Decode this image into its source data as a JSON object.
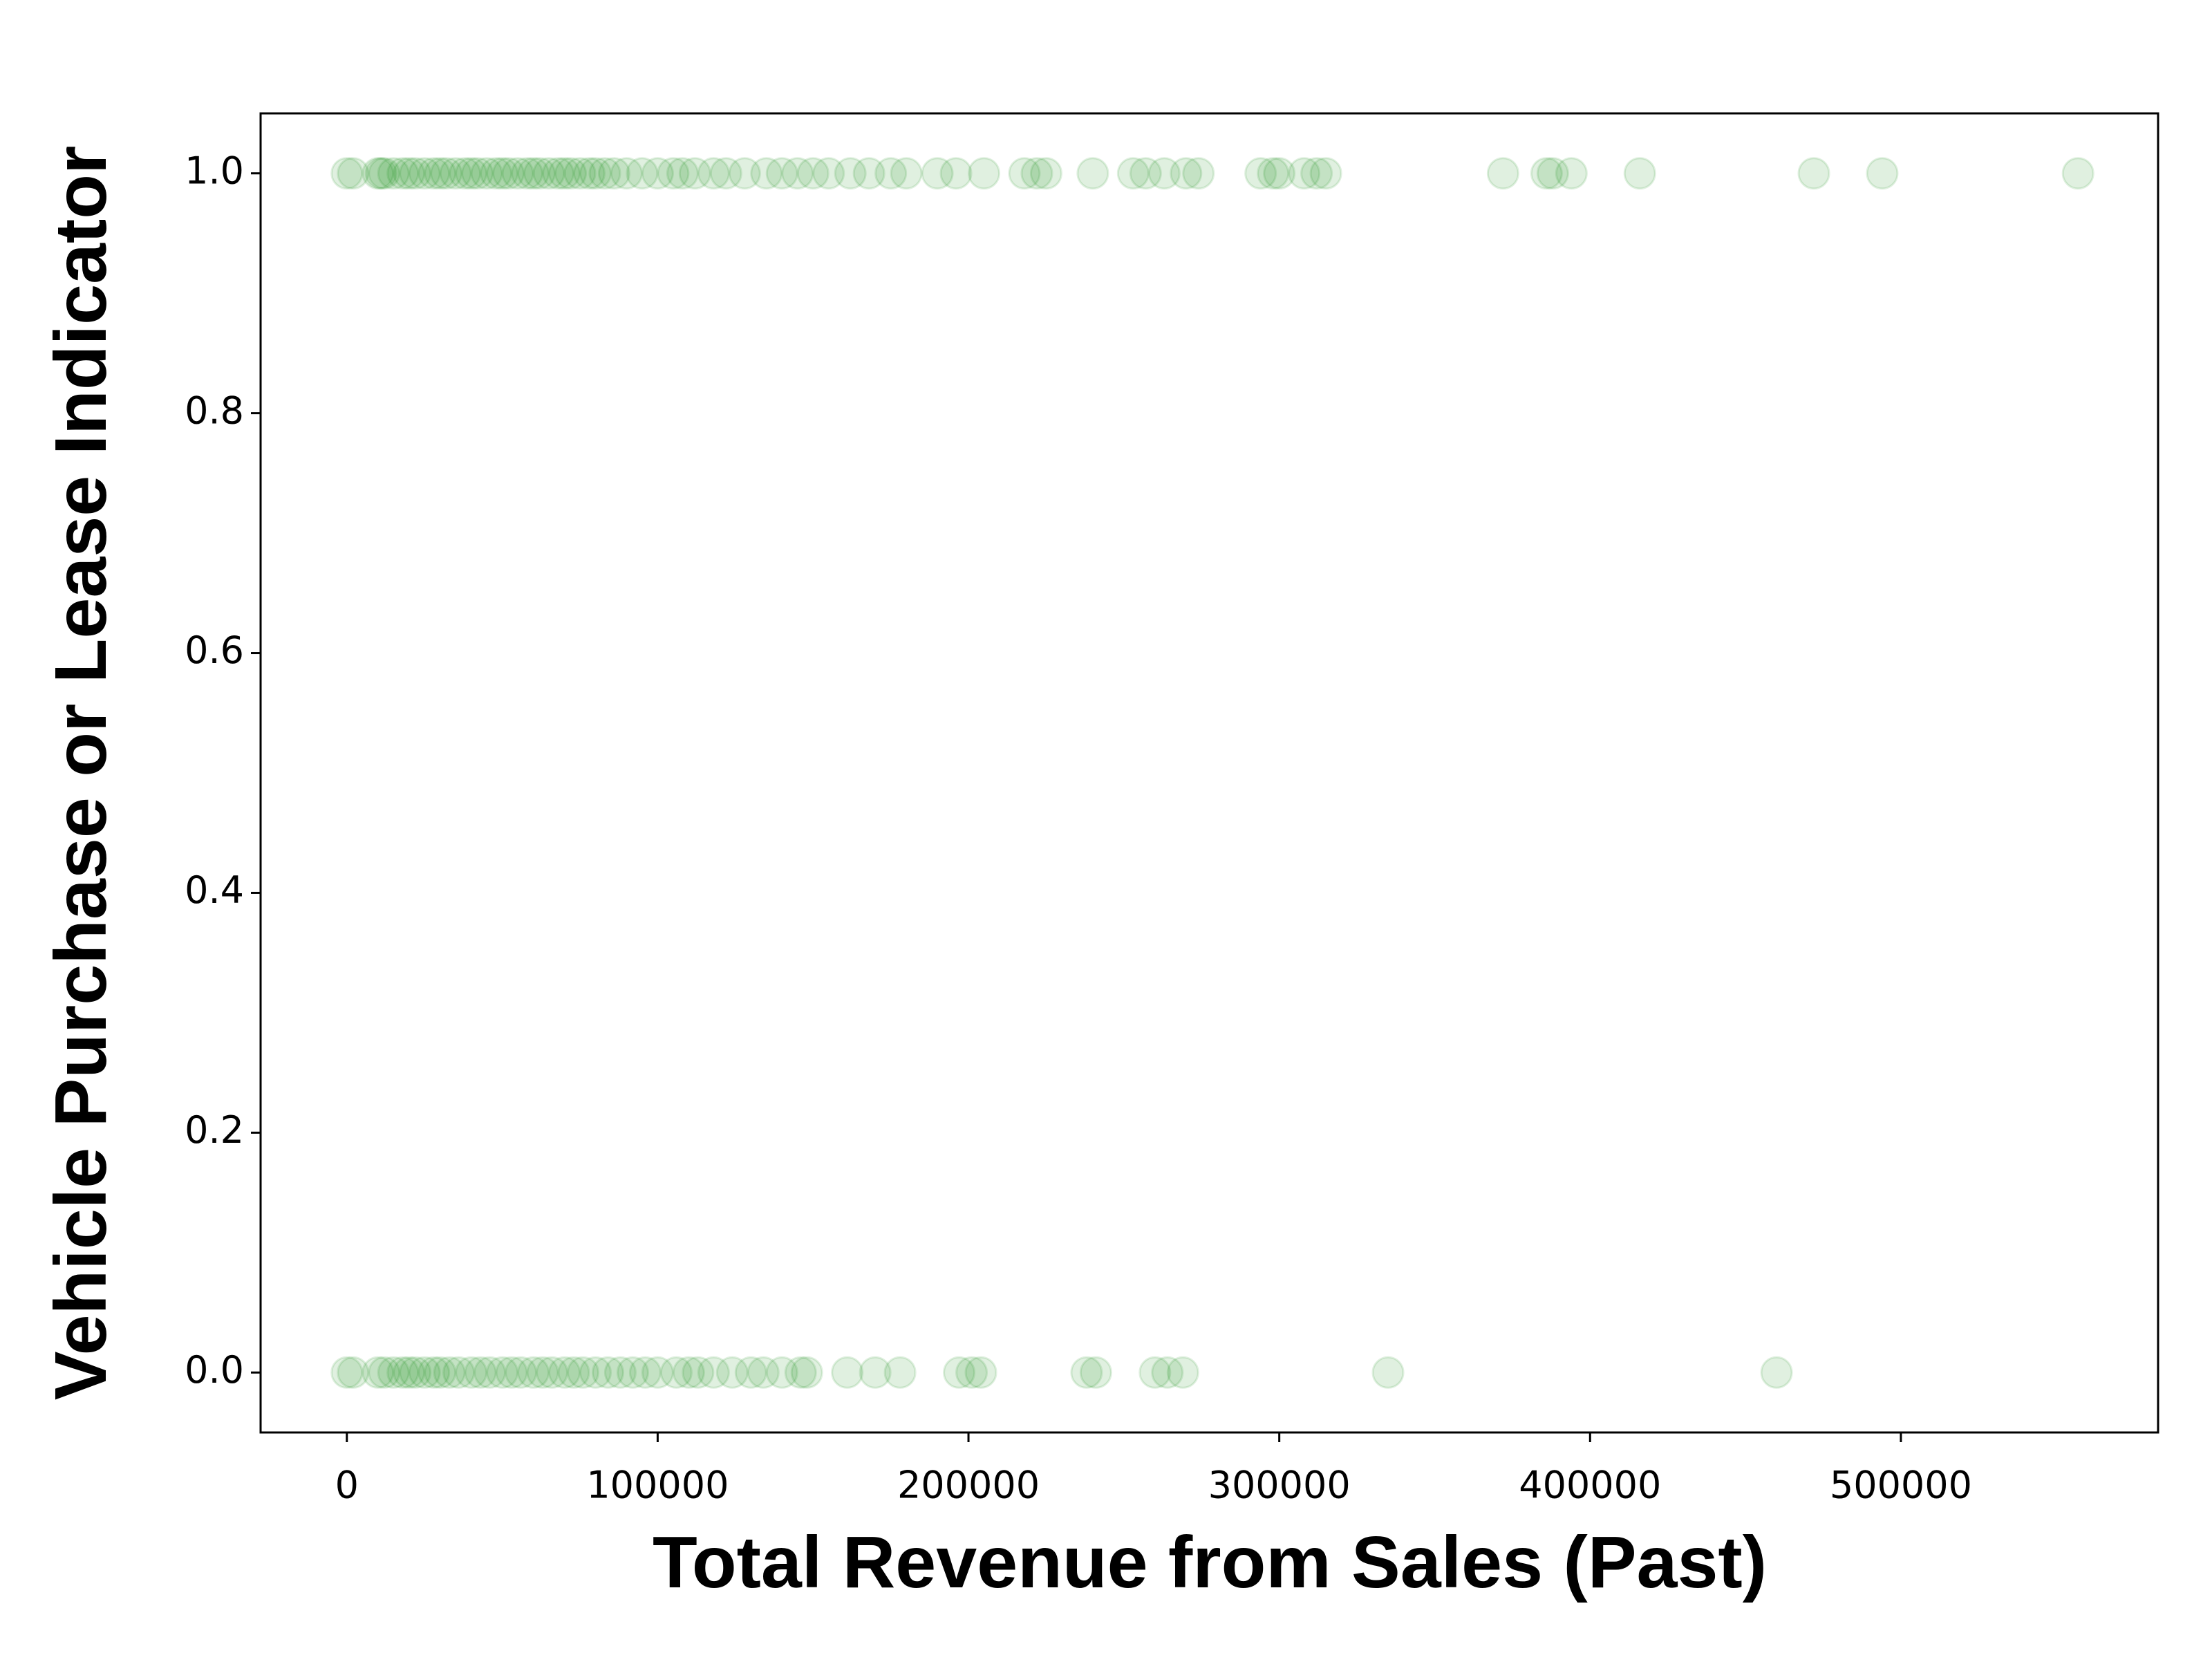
{
  "chart_data": {
    "type": "scatter",
    "x_label": "Total Revenue from Sales (Past)",
    "y_label": "Vehicle Purchase or Lease Indicator",
    "color": "green",
    "alpha": 0.12,
    "xlim": [
      -27750,
      582750
    ],
    "ylim": [
      -0.05,
      1.05
    ],
    "xticks": [
      0,
      100000,
      200000,
      300000,
      400000,
      500000
    ],
    "yticks": [
      {
        "value": 0,
        "label": "0.0"
      },
      {
        "value": 0.2,
        "label": "0.2"
      },
      {
        "value": 0.4,
        "label": "0.4"
      },
      {
        "value": 0.6,
        "label": "0.6"
      },
      {
        "value": 0.8,
        "label": "0.8"
      },
      {
        "value": 1,
        "label": "1.0"
      }
    ],
    "x": [
      0,
      2000,
      10000,
      11000,
      12000,
      15000,
      18000,
      20000,
      22000,
      25000,
      28000,
      30000,
      32000,
      35000,
      38000,
      40000,
      42000,
      45000,
      48000,
      50000,
      52000,
      55000,
      58000,
      60000,
      62000,
      65000,
      68000,
      70000,
      72000,
      75000,
      78000,
      80000,
      83000,
      86000,
      90000,
      95000,
      100000,
      105000,
      108000,
      112000,
      118000,
      122000,
      128000,
      135000,
      140000,
      145000,
      150000,
      155000,
      162000,
      168000,
      175000,
      180000,
      190000,
      196000,
      205000,
      218000,
      222000,
      225000,
      240000,
      253000,
      257000,
      263000,
      270000,
      274000,
      294000,
      298000,
      300000,
      308000,
      312000,
      315000,
      372000,
      386000,
      388000,
      394000,
      416000,
      472000,
      494000,
      557000,
      0,
      2000,
      10000,
      12000,
      15000,
      18000,
      20000,
      22000,
      25000,
      28000,
      30000,
      33000,
      36000,
      40000,
      43000,
      46000,
      50000,
      53000,
      56000,
      60000,
      63000,
      66000,
      70000,
      73000,
      76000,
      80000,
      84000,
      88000,
      92000,
      96000,
      100000,
      106000,
      110000,
      113000,
      118000,
      124000,
      130000,
      134000,
      140000,
      146000,
      148000,
      161000,
      170000,
      178000,
      197000,
      201000,
      204000,
      238000,
      241000,
      260000,
      264000,
      269000,
      335000,
      460000
    ],
    "values": [
      1,
      1,
      1,
      1,
      1,
      1,
      1,
      1,
      1,
      1,
      1,
      1,
      1,
      1,
      1,
      1,
      1,
      1,
      1,
      1,
      1,
      1,
      1,
      1,
      1,
      1,
      1,
      1,
      1,
      1,
      1,
      1,
      1,
      1,
      1,
      1,
      1,
      1,
      1,
      1,
      1,
      1,
      1,
      1,
      1,
      1,
      1,
      1,
      1,
      1,
      1,
      1,
      1,
      1,
      1,
      1,
      1,
      1,
      1,
      1,
      1,
      1,
      1,
      1,
      1,
      1,
      1,
      1,
      1,
      1,
      1,
      1,
      1,
      1,
      1,
      1,
      1,
      1,
      0,
      0,
      0,
      0,
      0,
      0,
      0,
      0,
      0,
      0,
      0,
      0,
      0,
      0,
      0,
      0,
      0,
      0,
      0,
      0,
      0,
      0,
      0,
      0,
      0,
      0,
      0,
      0,
      0,
      0,
      0,
      0,
      0,
      0,
      0,
      0,
      0,
      0,
      0,
      0,
      0,
      0,
      0,
      0,
      0,
      0,
      0,
      0,
      0,
      0,
      0,
      0,
      0,
      0
    ]
  }
}
